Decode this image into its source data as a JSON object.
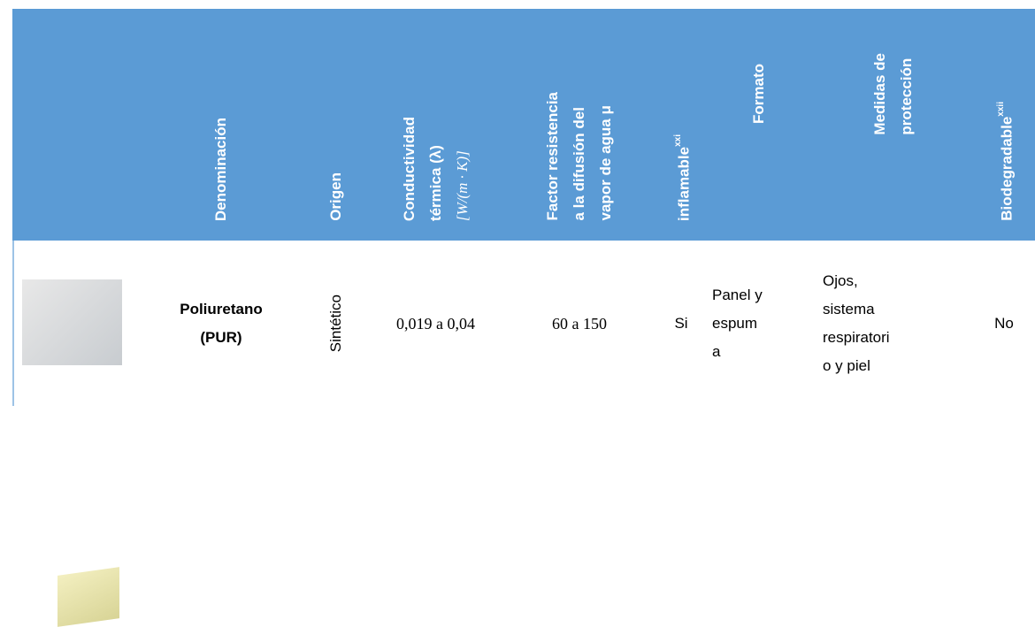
{
  "table": {
    "header": [
      {
        "lines": [
          "Denominación"
        ]
      },
      {
        "lines": [
          "Origen"
        ]
      },
      {
        "lines": [
          "Conductividad",
          "térmica (λ)",
          "[W/(m · K)]"
        ]
      },
      {
        "lines": [
          "Factor resistencia",
          "a la difusión del",
          "vapor de agua μ"
        ]
      },
      {
        "lines": [
          {
            "text": "inflamable",
            "sup": "xxi"
          }
        ]
      },
      {
        "lines": [
          "Formato"
        ]
      },
      {
        "lines": [
          "Medidas de",
          "protección"
        ]
      },
      {
        "lines": [
          {
            "text": "Biodegradable",
            "sup": "xxii"
          }
        ]
      }
    ],
    "rows": [
      [
        {
          "lines": [
            "Poliuretano",
            "(PUR)"
          ]
        },
        {
          "lines": [
            "Sintético"
          ]
        },
        {
          "lines": [
            "0,019 a 0,04"
          ]
        },
        {
          "lines": [
            "60 a 150"
          ]
        },
        {
          "lines": [
            "Si"
          ]
        },
        {
          "lines": [
            "Panel y",
            "espum",
            "a"
          ]
        },
        {
          "lines": [
            "Ojos,",
            "sistema",
            "respiratori",
            "o y piel"
          ]
        },
        {
          "lines": [
            "No"
          ]
        }
      ]
    ]
  }
}
